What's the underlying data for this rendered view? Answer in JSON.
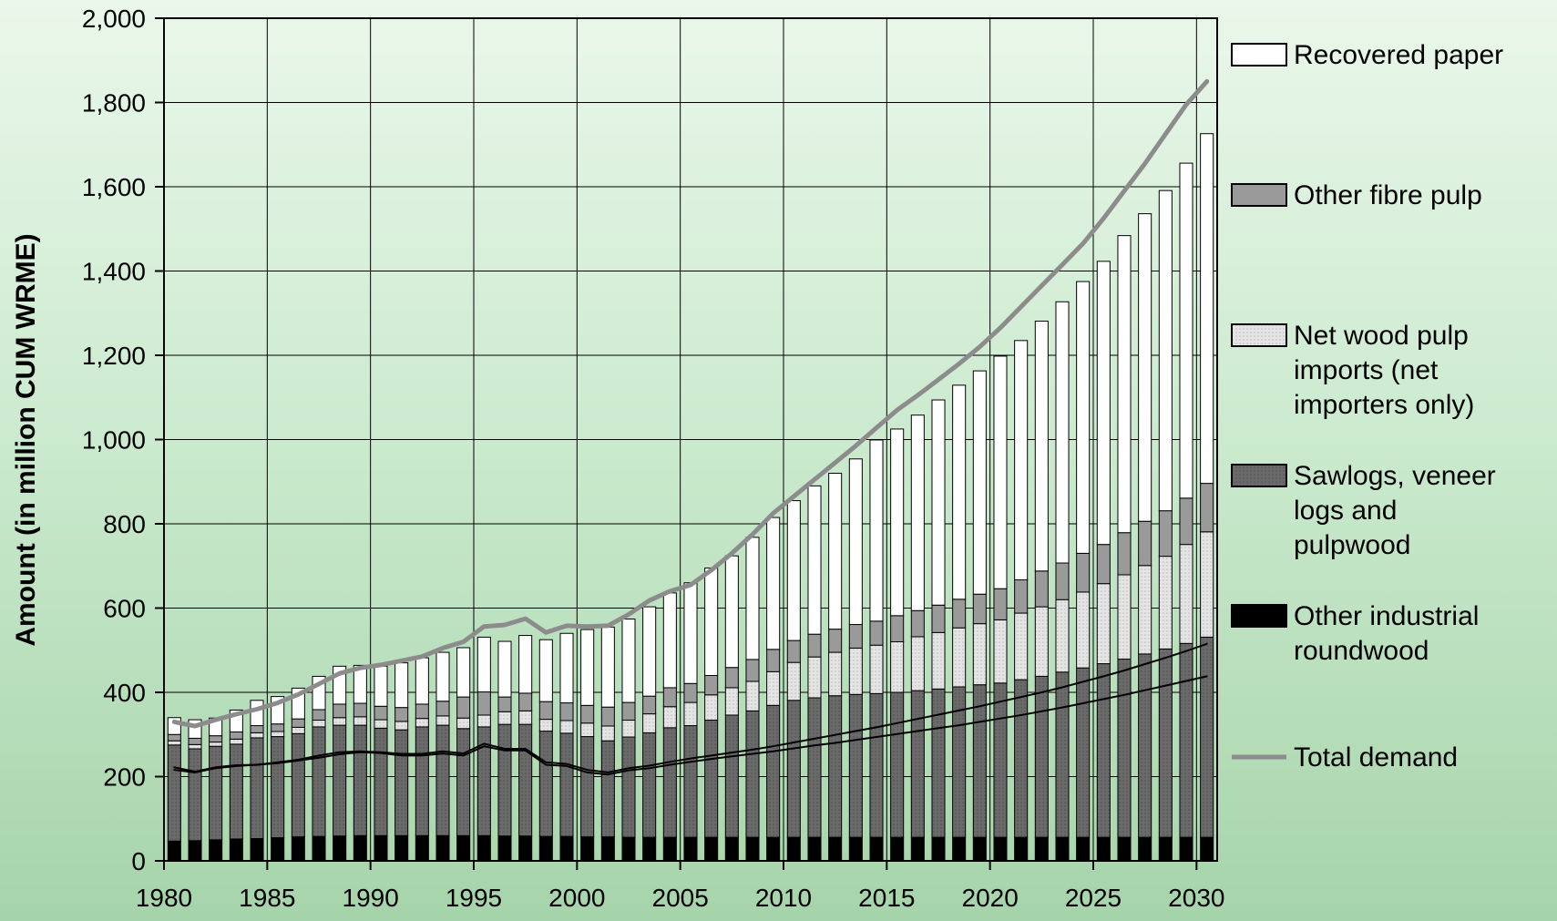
{
  "chart_data": {
    "type": "bar",
    "stacked": true,
    "ylabel": "Amount (in million CUM WRME)",
    "xlabel": "",
    "ylim": [
      0,
      2000
    ],
    "yticks": [
      0,
      200,
      400,
      600,
      800,
      1000,
      1200,
      1400,
      1600,
      1800,
      2000
    ],
    "ytick_labels": [
      "0",
      "200",
      "400",
      "600",
      "800",
      "1,000",
      "1,200",
      "1,400",
      "1,600",
      "1,800",
      "2,000"
    ],
    "xticks": [
      1980,
      1985,
      1990,
      1995,
      2000,
      2005,
      2010,
      2015,
      2020,
      2025,
      2030
    ],
    "grid": true,
    "legend_position": "right",
    "x": [
      1980,
      1981,
      1982,
      1983,
      1984,
      1985,
      1986,
      1987,
      1988,
      1989,
      1990,
      1991,
      1992,
      1993,
      1994,
      1995,
      1996,
      1997,
      1998,
      1999,
      2000,
      2001,
      2002,
      2003,
      2004,
      2005,
      2006,
      2007,
      2008,
      2009,
      2010,
      2011,
      2012,
      2013,
      2014,
      2015,
      2016,
      2017,
      2018,
      2019,
      2020,
      2021,
      2022,
      2023,
      2024,
      2025,
      2026,
      2027,
      2028,
      2029,
      2030
    ],
    "series": [
      {
        "name": "Other industrial roundwood",
        "color": "#000000",
        "values": [
          47,
          48,
          50,
          52,
          53,
          55,
          57,
          58,
          59,
          60,
          60,
          60,
          60,
          60,
          60,
          60,
          59,
          59,
          58,
          58,
          57,
          57,
          56,
          56,
          56,
          56,
          56,
          56,
          56,
          56,
          56,
          56,
          56,
          56,
          56,
          56,
          56,
          56,
          56,
          56,
          56,
          56,
          56,
          56,
          56,
          56,
          56,
          56,
          56,
          56,
          56
        ]
      },
      {
        "name": "Sawlogs, veneer logs and pulpwood",
        "color": "#6a6a6a",
        "values": [
          228,
          218,
          222,
          225,
          239,
          240,
          245,
          260,
          263,
          262,
          255,
          251,
          258,
          262,
          254,
          258,
          265,
          265,
          250,
          245,
          238,
          228,
          238,
          248,
          260,
          265,
          278,
          290,
          300,
          313,
          325,
          331,
          336,
          339,
          341,
          344,
          348,
          352,
          357,
          362,
          366,
          374,
          382,
          392,
          402,
          412,
          423,
          435,
          447,
          460,
          475
        ]
      },
      {
        "name": "Net wood pulp imports (net importers only)",
        "color": "#e4e4e4",
        "values": [
          10,
          10,
          10,
          12,
          12,
          12,
          15,
          16,
          18,
          20,
          20,
          20,
          20,
          22,
          25,
          28,
          30,
          32,
          28,
          30,
          32,
          35,
          40,
          45,
          50,
          55,
          60,
          65,
          70,
          80,
          90,
          97,
          103,
          110,
          115,
          120,
          128,
          134,
          140,
          145,
          150,
          158,
          165,
          172,
          180,
          190,
          200,
          210,
          220,
          235,
          250
        ]
      },
      {
        "name": "Other fibre pulp",
        "color": "#9a9a9a",
        "values": [
          15,
          15,
          15,
          17,
          17,
          18,
          20,
          25,
          32,
          32,
          32,
          33,
          34,
          35,
          50,
          55,
          35,
          42,
          42,
          42,
          42,
          45,
          42,
          42,
          45,
          45,
          46,
          48,
          52,
          53,
          52,
          54,
          55,
          56,
          57,
          62,
          62,
          65,
          68,
          70,
          74,
          79,
          85,
          87,
          92,
          93,
          100,
          105,
          108,
          110,
          115
        ]
      },
      {
        "name": "Recovered paper",
        "color": "#ffffff",
        "values": [
          40,
          44,
          42,
          52,
          60,
          65,
          73,
          79,
          90,
          90,
          95,
          106,
          110,
          116,
          117,
          130,
          132,
          137,
          147,
          165,
          180,
          190,
          198,
          212,
          225,
          239,
          255,
          265,
          290,
          313,
          332,
          352,
          370,
          393,
          430,
          443,
          464,
          487,
          508,
          530,
          552,
          568,
          593,
          620,
          645,
          672,
          705,
          730,
          760,
          795,
          830
        ]
      },
      {
        "name": "Total demand",
        "type": "line",
        "color": "#8c8c8c",
        "values": [
          330,
          320,
          335,
          348,
          360,
          375,
          395,
          420,
          445,
          458,
          465,
          475,
          485,
          505,
          520,
          556,
          560,
          575,
          542,
          558,
          556,
          558,
          585,
          618,
          640,
          655,
          690,
          730,
          775,
          825,
          865,
          905,
          945,
          985,
          1028,
          1070,
          1105,
          1142,
          1180,
          1220,
          1265,
          1315,
          1365,
          1415,
          1465,
          1525,
          1590,
          1655,
          1725,
          1795,
          1850
        ]
      },
      {
        "type": "line",
        "color": "#000000",
        "values": [
          216,
          210,
          220,
          225,
          228,
          232,
          238,
          245,
          253,
          258,
          256,
          250,
          250,
          255,
          250,
          272,
          262,
          262,
          228,
          225,
          210,
          205,
          215,
          220,
          228,
          235,
          242,
          248,
          254,
          260,
          267,
          274,
          280,
          287,
          294,
          301,
          308,
          315,
          322,
          330,
          338,
          346,
          355,
          364,
          374,
          384,
          394,
          405,
          416,
          427,
          438
        ]
      },
      {
        "type": "line",
        "color": "#000000",
        "values": [
          222,
          212,
          222,
          227,
          228,
          234,
          240,
          250,
          258,
          260,
          258,
          254,
          254,
          260,
          255,
          278,
          266,
          266,
          234,
          230,
          216,
          210,
          220,
          226,
          235,
          243,
          250,
          257,
          264,
          272,
          281,
          290,
          299,
          308,
          317,
          327,
          337,
          347,
          357,
          367,
          378,
          389,
          400,
          412,
          425,
          438,
          452,
          467,
          482,
          498,
          515
        ]
      }
    ],
    "legend": [
      {
        "label": "Recovered paper",
        "marker": "box",
        "color": "#ffffff"
      },
      {
        "label": "Other fibre pulp",
        "marker": "box",
        "color": "#9a9a9a"
      },
      {
        "label": "Net wood pulp imports (net importers only)",
        "marker": "box",
        "color": "#e4e4e4",
        "lines": [
          "Net wood pulp",
          "imports (net",
          "importers only)"
        ]
      },
      {
        "label": "Sawlogs, veneer logs and pulpwood",
        "marker": "box",
        "color": "#6a6a6a",
        "lines": [
          "Sawlogs, veneer",
          "logs and",
          "pulpwood"
        ]
      },
      {
        "label": "Other industrial roundwood",
        "marker": "box",
        "color": "#000000",
        "lines": [
          "Other industrial",
          "roundwood"
        ]
      },
      {
        "label": "Total demand",
        "marker": "line",
        "color": "#8c8c8c"
      }
    ]
  }
}
